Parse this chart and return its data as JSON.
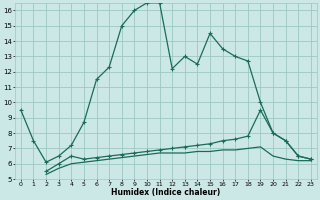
{
  "xlabel": "Humidex (Indice chaleur)",
  "bg_color": "#cce8e6",
  "grid_color": "#9dc8c5",
  "line_color": "#1a6b5a",
  "xlim": [
    -0.5,
    23.5
  ],
  "ylim": [
    5,
    16.5
  ],
  "yticks": [
    5,
    6,
    7,
    8,
    9,
    10,
    11,
    12,
    13,
    14,
    15,
    16
  ],
  "xticks": [
    0,
    1,
    2,
    3,
    4,
    5,
    6,
    7,
    8,
    9,
    10,
    11,
    12,
    13,
    14,
    15,
    16,
    17,
    18,
    19,
    20,
    21,
    22,
    23
  ],
  "line1_x": [
    0,
    1,
    2,
    3,
    4,
    5,
    6,
    7,
    8,
    9,
    10,
    11,
    12,
    13,
    14,
    15,
    16,
    17,
    18,
    19,
    20,
    21,
    22,
    23
  ],
  "line1_y": [
    9.5,
    7.5,
    6.1,
    6.5,
    7.2,
    8.7,
    11.5,
    12.3,
    15.0,
    16.0,
    16.5,
    16.5,
    12.2,
    13.0,
    12.5,
    14.5,
    13.5,
    13.0,
    12.7,
    10.0,
    8.0,
    7.5,
    6.5,
    6.3
  ],
  "line2_x": [
    2,
    3,
    4,
    5,
    6,
    7,
    8,
    9,
    10,
    11,
    12,
    13,
    14,
    15,
    16,
    17,
    18,
    19,
    20,
    21,
    22,
    23
  ],
  "line2_y": [
    5.5,
    6.0,
    6.5,
    6.3,
    6.4,
    6.5,
    6.6,
    6.7,
    6.8,
    6.9,
    7.0,
    7.1,
    7.2,
    7.3,
    7.5,
    7.6,
    7.8,
    9.5,
    8.0,
    7.5,
    6.5,
    6.3
  ],
  "line3_x": [
    2,
    3,
    4,
    5,
    6,
    7,
    8,
    9,
    10,
    11,
    12,
    13,
    14,
    15,
    16,
    17,
    18,
    19,
    20,
    21,
    22,
    23
  ],
  "line3_y": [
    5.3,
    5.7,
    6.0,
    6.1,
    6.2,
    6.3,
    6.4,
    6.5,
    6.6,
    6.7,
    6.7,
    6.7,
    6.8,
    6.8,
    6.9,
    6.9,
    7.0,
    7.1,
    6.5,
    6.3,
    6.2,
    6.2
  ]
}
